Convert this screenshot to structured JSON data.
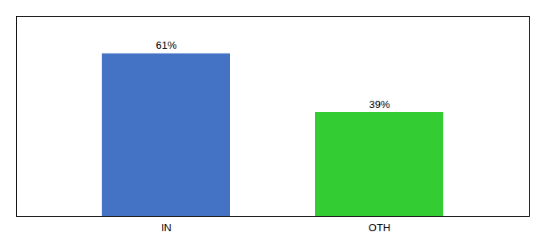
{
  "chart_data": {
    "type": "bar",
    "categories": [
      "IN",
      "OTH"
    ],
    "values": [
      61,
      39
    ],
    "value_labels": [
      "61%",
      "39%"
    ],
    "data_labels": true,
    "colors": [
      "#4472c4",
      "#33cc33"
    ],
    "ylim": [
      0,
      75
    ],
    "tick_labels": "x",
    "grid": false
  }
}
